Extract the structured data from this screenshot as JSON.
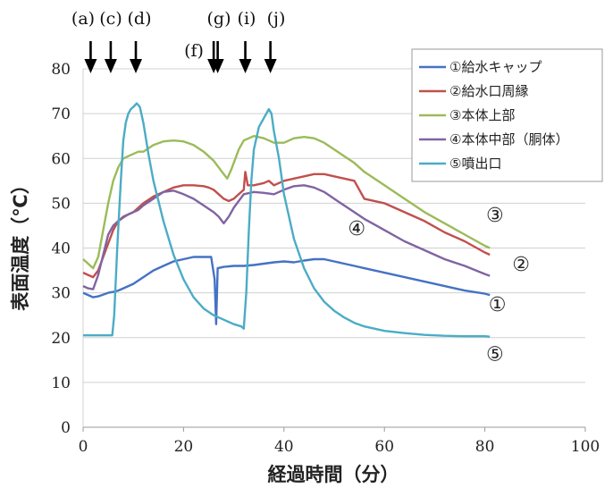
{
  "chart_data": {
    "type": "line",
    "title": "",
    "xlabel": "経過時間（分）",
    "ylabel": "表面温度（℃）",
    "xlim": [
      0,
      100
    ],
    "ylim": [
      0,
      80
    ],
    "x_ticks": [
      "0",
      "20",
      "40",
      "60",
      "80",
      "100"
    ],
    "y_ticks": [
      "0",
      "10",
      "20",
      "30",
      "40",
      "50",
      "60",
      "70",
      "80"
    ],
    "grid": "horizontal",
    "legend_position": "top-right",
    "series": [
      {
        "name": "①給水キャップ",
        "color": "#4472C4",
        "end_label": "①",
        "points": [
          [
            0,
            30
          ],
          [
            1,
            29.5
          ],
          [
            2,
            29
          ],
          [
            3,
            29.2
          ],
          [
            4,
            29.6
          ],
          [
            5,
            30
          ],
          [
            6,
            30.2
          ],
          [
            7,
            30.5
          ],
          [
            8,
            31
          ],
          [
            9,
            31.5
          ],
          [
            10,
            32
          ],
          [
            12,
            33.5
          ],
          [
            14,
            35
          ],
          [
            16,
            36
          ],
          [
            18,
            37
          ],
          [
            20,
            37.5
          ],
          [
            22,
            38
          ],
          [
            24,
            38
          ],
          [
            25.5,
            38
          ],
          [
            26.2,
            33
          ],
          [
            26.5,
            23
          ],
          [
            26.8,
            35.5
          ],
          [
            28,
            35.8
          ],
          [
            30,
            36
          ],
          [
            32,
            36
          ],
          [
            34,
            36.2
          ],
          [
            36,
            36.5
          ],
          [
            38,
            36.8
          ],
          [
            40,
            37
          ],
          [
            42,
            36.8
          ],
          [
            44,
            37.2
          ],
          [
            46,
            37.5
          ],
          [
            48,
            37.5
          ],
          [
            50,
            37
          ],
          [
            52,
            36.5
          ],
          [
            54,
            36
          ],
          [
            56,
            35.5
          ],
          [
            60,
            34.5
          ],
          [
            64,
            33.5
          ],
          [
            68,
            32.5
          ],
          [
            72,
            31.5
          ],
          [
            76,
            30.5
          ],
          [
            80,
            29.8
          ],
          [
            81,
            29.5
          ]
        ]
      },
      {
        "name": "②給水口周縁",
        "color": "#C0504D",
        "end_label": "②",
        "points": [
          [
            0,
            34.5
          ],
          [
            1,
            34
          ],
          [
            2,
            33.5
          ],
          [
            3,
            35
          ],
          [
            4,
            38
          ],
          [
            5,
            41
          ],
          [
            6,
            44
          ],
          [
            7,
            46
          ],
          [
            8,
            47
          ],
          [
            9,
            47.5
          ],
          [
            10,
            48
          ],
          [
            11,
            49
          ],
          [
            12,
            50
          ],
          [
            14,
            51.5
          ],
          [
            16,
            52.5
          ],
          [
            18,
            53.5
          ],
          [
            20,
            54
          ],
          [
            22,
            54
          ],
          [
            24,
            53.8
          ],
          [
            25,
            53.5
          ],
          [
            26,
            53
          ],
          [
            27,
            52
          ],
          [
            28,
            51
          ],
          [
            29,
            50.5
          ],
          [
            30,
            51
          ],
          [
            31,
            52
          ],
          [
            32,
            53
          ],
          [
            32.3,
            57
          ],
          [
            32.8,
            54
          ],
          [
            34,
            54
          ],
          [
            36,
            54.5
          ],
          [
            37,
            55
          ],
          [
            38,
            54
          ],
          [
            39,
            54.5
          ],
          [
            40,
            55
          ],
          [
            42,
            55.5
          ],
          [
            44,
            56
          ],
          [
            46,
            56.5
          ],
          [
            48,
            56.5
          ],
          [
            50,
            56
          ],
          [
            52,
            55.5
          ],
          [
            54,
            55
          ],
          [
            55,
            53
          ],
          [
            56,
            51
          ],
          [
            58,
            50.5
          ],
          [
            60,
            50
          ],
          [
            64,
            48
          ],
          [
            68,
            46
          ],
          [
            72,
            43.5
          ],
          [
            76,
            41.5
          ],
          [
            80,
            39
          ],
          [
            81,
            38.5
          ]
        ]
      },
      {
        "name": "③本体上部",
        "color": "#9BBB59",
        "end_label": "③",
        "points": [
          [
            0,
            37.5
          ],
          [
            1,
            36.5
          ],
          [
            2,
            35.5
          ],
          [
            3,
            38
          ],
          [
            4,
            44
          ],
          [
            5,
            50
          ],
          [
            6,
            55
          ],
          [
            7,
            58
          ],
          [
            8,
            60
          ],
          [
            9,
            60.5
          ],
          [
            10,
            61
          ],
          [
            11,
            61.5
          ],
          [
            12,
            61.5
          ],
          [
            14,
            63
          ],
          [
            16,
            63.8
          ],
          [
            18,
            64
          ],
          [
            20,
            63.8
          ],
          [
            22,
            63
          ],
          [
            24,
            61.5
          ],
          [
            26,
            59.5
          ],
          [
            27,
            58
          ],
          [
            28,
            56.5
          ],
          [
            28.7,
            55.5
          ],
          [
            29.5,
            57.5
          ],
          [
            30,
            59
          ],
          [
            31,
            62
          ],
          [
            32,
            64
          ],
          [
            34,
            65
          ],
          [
            36,
            64.5
          ],
          [
            38,
            63.5
          ],
          [
            40,
            63.5
          ],
          [
            42,
            64.5
          ],
          [
            44,
            64.8
          ],
          [
            46,
            64.5
          ],
          [
            48,
            63.5
          ],
          [
            50,
            62
          ],
          [
            52,
            60.5
          ],
          [
            54,
            59
          ],
          [
            56,
            57
          ],
          [
            58,
            55.5
          ],
          [
            60,
            54
          ],
          [
            64,
            51
          ],
          [
            68,
            48
          ],
          [
            72,
            45.5
          ],
          [
            76,
            43
          ],
          [
            80,
            40.5
          ],
          [
            81,
            40
          ]
        ]
      },
      {
        "name": "④本体中部（胴体）",
        "color": "#8064A2",
        "end_label": "④",
        "points": [
          [
            0,
            31.5
          ],
          [
            1,
            31
          ],
          [
            2,
            30.8
          ],
          [
            3,
            34
          ],
          [
            4,
            38.5
          ],
          [
            5,
            43
          ],
          [
            6,
            45
          ],
          [
            7,
            46
          ],
          [
            8,
            46.8
          ],
          [
            9,
            47.5
          ],
          [
            10,
            48
          ],
          [
            11,
            48.5
          ],
          [
            12,
            49.5
          ],
          [
            14,
            51
          ],
          [
            16,
            52.5
          ],
          [
            18,
            52.8
          ],
          [
            20,
            52
          ],
          [
            22,
            51
          ],
          [
            24,
            49.5
          ],
          [
            26,
            48
          ],
          [
            27,
            47
          ],
          [
            28,
            45.5
          ],
          [
            29,
            47
          ],
          [
            30,
            49
          ],
          [
            31,
            50.5
          ],
          [
            32,
            52
          ],
          [
            34,
            52.5
          ],
          [
            36,
            52.3
          ],
          [
            38,
            52
          ],
          [
            40,
            53
          ],
          [
            42,
            53.8
          ],
          [
            44,
            54
          ],
          [
            46,
            53.5
          ],
          [
            48,
            52.5
          ],
          [
            50,
            51
          ],
          [
            52,
            49.5
          ],
          [
            54,
            48
          ],
          [
            56,
            46.5
          ],
          [
            60,
            44
          ],
          [
            64,
            41.5
          ],
          [
            68,
            39.5
          ],
          [
            72,
            37.5
          ],
          [
            76,
            36
          ],
          [
            80,
            34.2
          ],
          [
            81,
            33.8
          ]
        ]
      },
      {
        "name": "⑤噴出口",
        "color": "#4BACC6",
        "end_label": "⑤",
        "points": [
          [
            0,
            20.5
          ],
          [
            5.8,
            20.5
          ],
          [
            6.2,
            25
          ],
          [
            6.8,
            40
          ],
          [
            7.5,
            55
          ],
          [
            8,
            64
          ],
          [
            8.5,
            68
          ],
          [
            9,
            70
          ],
          [
            9.5,
            71
          ],
          [
            10,
            71.5
          ],
          [
            10.7,
            72.3
          ],
          [
            11.3,
            71.5
          ],
          [
            12,
            68
          ],
          [
            13,
            61
          ],
          [
            14,
            55
          ],
          [
            16,
            46
          ],
          [
            18,
            38.5
          ],
          [
            20,
            33
          ],
          [
            22,
            29
          ],
          [
            24,
            26.5
          ],
          [
            26,
            25
          ],
          [
            28,
            24
          ],
          [
            30,
            23
          ],
          [
            31.5,
            22.5
          ],
          [
            32,
            22
          ],
          [
            32.5,
            30
          ],
          [
            33,
            44
          ],
          [
            33.5,
            55
          ],
          [
            34,
            62
          ],
          [
            35,
            67
          ],
          [
            36,
            69
          ],
          [
            36.5,
            70
          ],
          [
            37,
            71
          ],
          [
            37.5,
            70
          ],
          [
            38,
            66
          ],
          [
            39,
            60
          ],
          [
            40,
            52
          ],
          [
            42,
            42
          ],
          [
            44,
            35.5
          ],
          [
            46,
            31
          ],
          [
            48,
            28
          ],
          [
            50,
            26
          ],
          [
            52,
            24.5
          ],
          [
            54,
            23.3
          ],
          [
            56,
            22.5
          ],
          [
            60,
            21.5
          ],
          [
            64,
            21
          ],
          [
            68,
            20.6
          ],
          [
            72,
            20.4
          ],
          [
            76,
            20.3
          ],
          [
            80,
            20.3
          ],
          [
            81,
            20.2
          ]
        ]
      }
    ],
    "event_markers": [
      {
        "label": "(a)",
        "x": 1.5
      },
      {
        "label": "(c)",
        "x": 5.5
      },
      {
        "label": "(d)",
        "x": 10.5
      },
      {
        "label": "(f)",
        "x": 26
      },
      {
        "label": "(g)",
        "x": 26.8
      },
      {
        "label": "(i)",
        "x": 32.3
      },
      {
        "label": "(j)",
        "x": 37.3
      }
    ]
  }
}
